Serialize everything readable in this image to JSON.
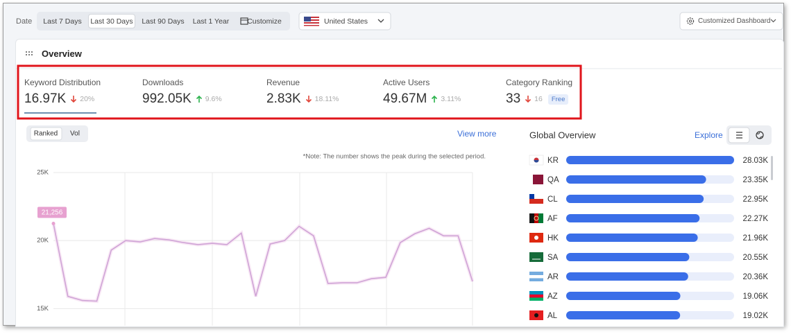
{
  "toolbar": {
    "date_label": "Date",
    "ranges": [
      "Last 7 Days",
      "Last 30 Days",
      "Last 90 Days",
      "Last 1 Year",
      "Customize"
    ],
    "selected_range": 1,
    "country": "United States",
    "dashboard": "Customized Dashboard"
  },
  "overview": {
    "title": "Overview",
    "metrics": [
      {
        "label": "Keyword Distribution",
        "value": "16.97K",
        "change": "20%",
        "trend": "down"
      },
      {
        "label": "Downloads",
        "value": "992.05K",
        "change": "9.6%",
        "trend": "up"
      },
      {
        "label": "Revenue",
        "value": "2.83K",
        "change": "18.11%",
        "trend": "down"
      },
      {
        "label": "Active Users",
        "value": "49.67M",
        "change": "3.11%",
        "trend": "up"
      },
      {
        "label": "Category Ranking",
        "value": "33",
        "change": "16",
        "trend": "down",
        "badge": "Free"
      }
    ]
  },
  "chart_data": [
    {
      "type": "line",
      "tabs": [
        "Ranked",
        "Vol"
      ],
      "selected_tab": 0,
      "link": "View more",
      "note": "*Note: The number shows the peak during the selected period.",
      "color": "#cfa3d6",
      "grid": true,
      "values": [
        21256,
        15900,
        15600,
        15550,
        19300,
        20000,
        19900,
        20150,
        20050,
        19850,
        19700,
        19800,
        19700,
        20550,
        15900,
        19750,
        20000,
        21050,
        20350,
        16850,
        16900,
        16900,
        17200,
        17300,
        19850,
        20500,
        20900,
        20350,
        20350,
        17000
      ],
      "value_labels": [
        "21,256",
        null,
        null,
        null,
        null,
        null,
        null,
        null,
        null,
        null,
        null,
        null,
        null,
        null,
        null,
        null,
        null,
        null,
        null,
        null,
        null,
        null,
        null,
        null,
        null,
        null,
        null,
        null,
        null,
        null
      ],
      "ylim": [
        14000,
        25000
      ],
      "yticks": [
        {
          "value": 15000,
          "label": "15K"
        },
        {
          "value": 20000,
          "label": "20K"
        },
        {
          "value": 25000,
          "label": "25K"
        }
      ]
    },
    {
      "type": "bar",
      "title": "Global Overview",
      "link": "Explore",
      "color": "#3a6ee8",
      "categories": [
        "KR",
        "QA",
        "CL",
        "AF",
        "HK",
        "SA",
        "AR",
        "AZ",
        "AL"
      ],
      "values": [
        28030,
        23350,
        22950,
        22270,
        21960,
        20550,
        20360,
        19060,
        19020
      ],
      "value_labels": [
        "28.03K",
        "23.35K",
        "22.95K",
        "22.27K",
        "21.96K",
        "20.55K",
        "20.36K",
        "19.06K",
        "19.02K"
      ],
      "xlim": [
        0,
        28030
      ]
    }
  ]
}
